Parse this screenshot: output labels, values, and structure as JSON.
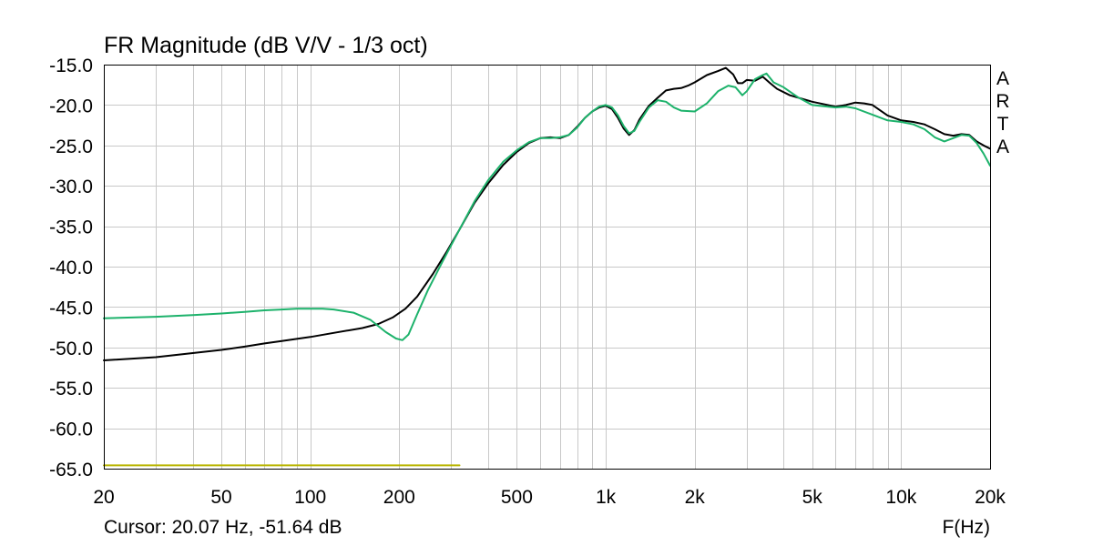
{
  "chart_data": {
    "type": "line",
    "title": "FR Magnitude (dB V/V - 1/3 oct)",
    "xlabel": "F(Hz)",
    "ylabel": "",
    "x_scale": "log",
    "xlim": [
      20,
      20000
    ],
    "ylim": [
      -65,
      -15
    ],
    "grid": true,
    "x_ticks": [
      {
        "value": 20,
        "label": "20"
      },
      {
        "value": 50,
        "label": "50"
      },
      {
        "value": 100,
        "label": "100"
      },
      {
        "value": 200,
        "label": "200"
      },
      {
        "value": 500,
        "label": "500"
      },
      {
        "value": 1000,
        "label": "1k"
      },
      {
        "value": 2000,
        "label": "2k"
      },
      {
        "value": 5000,
        "label": "5k"
      },
      {
        "value": 10000,
        "label": "10k"
      },
      {
        "value": 20000,
        "label": "20k"
      }
    ],
    "y_ticks": [
      {
        "value": -15,
        "label": "-15.0"
      },
      {
        "value": -20,
        "label": "-20.0"
      },
      {
        "value": -25,
        "label": "-25.0"
      },
      {
        "value": -30,
        "label": "-30.0"
      },
      {
        "value": -35,
        "label": "-35.0"
      },
      {
        "value": -40,
        "label": "-40.0"
      },
      {
        "value": -45,
        "label": "-45.0"
      },
      {
        "value": -50,
        "label": "-50.0"
      },
      {
        "value": -55,
        "label": "-55.0"
      },
      {
        "value": -60,
        "label": "-60.0"
      },
      {
        "value": -65,
        "label": "-65.0"
      }
    ],
    "series": [
      {
        "color": "#000000",
        "points": [
          [
            20,
            -51.6
          ],
          [
            30,
            -51.2
          ],
          [
            40,
            -50.7
          ],
          [
            50,
            -50.3
          ],
          [
            60,
            -49.9
          ],
          [
            70,
            -49.5
          ],
          [
            80,
            -49.2
          ],
          [
            100,
            -48.7
          ],
          [
            120,
            -48.2
          ],
          [
            150,
            -47.6
          ],
          [
            170,
            -47.1
          ],
          [
            190,
            -46.3
          ],
          [
            210,
            -45.2
          ],
          [
            230,
            -43.7
          ],
          [
            260,
            -40.9
          ],
          [
            290,
            -38.1
          ],
          [
            320,
            -35.4
          ],
          [
            360,
            -32.1
          ],
          [
            400,
            -29.7
          ],
          [
            450,
            -27.4
          ],
          [
            500,
            -25.8
          ],
          [
            550,
            -24.7
          ],
          [
            600,
            -24.1
          ],
          [
            650,
            -24.0
          ],
          [
            700,
            -24.1
          ],
          [
            750,
            -23.7
          ],
          [
            800,
            -22.7
          ],
          [
            850,
            -21.6
          ],
          [
            900,
            -20.8
          ],
          [
            950,
            -20.3
          ],
          [
            1000,
            -20.1
          ],
          [
            1050,
            -20.5
          ],
          [
            1100,
            -21.6
          ],
          [
            1150,
            -22.9
          ],
          [
            1200,
            -23.7
          ],
          [
            1250,
            -23.1
          ],
          [
            1300,
            -21.8
          ],
          [
            1400,
            -20.1
          ],
          [
            1500,
            -19.1
          ],
          [
            1600,
            -18.2
          ],
          [
            1700,
            -18.0
          ],
          [
            1800,
            -17.9
          ],
          [
            1900,
            -17.6
          ],
          [
            2000,
            -17.2
          ],
          [
            2200,
            -16.3
          ],
          [
            2400,
            -15.8
          ],
          [
            2550,
            -15.4
          ],
          [
            2700,
            -16.2
          ],
          [
            2800,
            -17.3
          ],
          [
            2900,
            -17.3
          ],
          [
            3000,
            -16.9
          ],
          [
            3200,
            -17.0
          ],
          [
            3400,
            -16.5
          ],
          [
            3600,
            -17.3
          ],
          [
            3800,
            -18.0
          ],
          [
            4200,
            -18.8
          ],
          [
            5000,
            -19.6
          ],
          [
            6000,
            -20.2
          ],
          [
            6500,
            -20.0
          ],
          [
            7000,
            -19.7
          ],
          [
            7500,
            -19.8
          ],
          [
            8000,
            -20.0
          ],
          [
            9000,
            -21.3
          ],
          [
            10000,
            -21.9
          ],
          [
            11000,
            -22.1
          ],
          [
            12000,
            -22.4
          ],
          [
            13000,
            -23.0
          ],
          [
            14000,
            -23.6
          ],
          [
            15000,
            -23.8
          ],
          [
            16000,
            -23.6
          ],
          [
            17000,
            -23.7
          ],
          [
            18000,
            -24.5
          ],
          [
            19000,
            -25.0
          ],
          [
            20000,
            -25.4
          ]
        ]
      },
      {
        "color": "#1db26b",
        "points": [
          [
            20,
            -46.4
          ],
          [
            30,
            -46.2
          ],
          [
            40,
            -46.0
          ],
          [
            50,
            -45.8
          ],
          [
            60,
            -45.6
          ],
          [
            70,
            -45.4
          ],
          [
            80,
            -45.3
          ],
          [
            90,
            -45.2
          ],
          [
            100,
            -45.2
          ],
          [
            110,
            -45.2
          ],
          [
            120,
            -45.3
          ],
          [
            140,
            -45.7
          ],
          [
            160,
            -46.6
          ],
          [
            180,
            -48.1
          ],
          [
            195,
            -48.9
          ],
          [
            205,
            -49.1
          ],
          [
            215,
            -48.4
          ],
          [
            230,
            -45.9
          ],
          [
            250,
            -42.9
          ],
          [
            280,
            -39.4
          ],
          [
            320,
            -35.4
          ],
          [
            360,
            -31.9
          ],
          [
            400,
            -29.3
          ],
          [
            450,
            -27.0
          ],
          [
            500,
            -25.6
          ],
          [
            550,
            -24.6
          ],
          [
            600,
            -24.1
          ],
          [
            650,
            -24.1
          ],
          [
            700,
            -24.0
          ],
          [
            750,
            -23.7
          ],
          [
            800,
            -22.8
          ],
          [
            850,
            -21.6
          ],
          [
            900,
            -20.8
          ],
          [
            950,
            -20.2
          ],
          [
            1000,
            -20.0
          ],
          [
            1050,
            -20.3
          ],
          [
            1100,
            -21.3
          ],
          [
            1150,
            -22.6
          ],
          [
            1200,
            -23.5
          ],
          [
            1250,
            -23.2
          ],
          [
            1300,
            -22.1
          ],
          [
            1400,
            -20.3
          ],
          [
            1500,
            -19.4
          ],
          [
            1600,
            -19.6
          ],
          [
            1700,
            -20.3
          ],
          [
            1800,
            -20.7
          ],
          [
            2000,
            -20.8
          ],
          [
            2200,
            -19.8
          ],
          [
            2400,
            -18.3
          ],
          [
            2600,
            -17.6
          ],
          [
            2750,
            -17.8
          ],
          [
            2900,
            -18.8
          ],
          [
            3000,
            -18.3
          ],
          [
            3200,
            -16.8
          ],
          [
            3400,
            -16.3
          ],
          [
            3500,
            -16.1
          ],
          [
            3700,
            -17.2
          ],
          [
            4000,
            -17.8
          ],
          [
            4500,
            -19.1
          ],
          [
            5000,
            -20.0
          ],
          [
            6000,
            -20.3
          ],
          [
            6500,
            -20.2
          ],
          [
            7000,
            -20.4
          ],
          [
            8000,
            -21.2
          ],
          [
            9000,
            -21.9
          ],
          [
            10000,
            -22.1
          ],
          [
            11000,
            -22.4
          ],
          [
            12000,
            -23.0
          ],
          [
            13000,
            -24.0
          ],
          [
            14000,
            -24.5
          ],
          [
            15000,
            -24.1
          ],
          [
            16000,
            -23.7
          ],
          [
            17000,
            -23.8
          ],
          [
            18000,
            -24.7
          ],
          [
            19000,
            -26.0
          ],
          [
            20000,
            -27.5
          ]
        ]
      },
      {
        "color": "#b8b400",
        "points": [
          [
            20,
            -64.6
          ],
          [
            320,
            -64.6
          ]
        ]
      }
    ]
  },
  "cursor_readout": "Cursor: 20.07 Hz, -51.64 dB",
  "watermark_letters": [
    "A",
    "R",
    "T",
    "A"
  ],
  "colors": {
    "background": "#ffffff",
    "grid": "#c8c8c8",
    "frame": "#000000",
    "axis_text": "#000000"
  }
}
